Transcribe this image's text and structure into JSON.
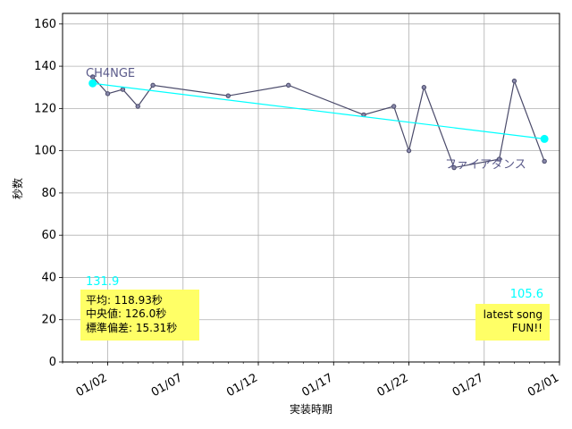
{
  "chart_data": {
    "type": "line",
    "xlabel": "実装時期",
    "ylabel": "秒数",
    "ylim": [
      0,
      165
    ],
    "yticks": [
      0,
      20,
      40,
      60,
      80,
      100,
      120,
      140,
      160
    ],
    "xlim": [
      "2021-12-30",
      "2022-02-01"
    ],
    "xticks": [
      {
        "date": "2022-01-02",
        "label": "01/02"
      },
      {
        "date": "2022-01-07",
        "label": "01/07"
      },
      {
        "date": "2022-01-12",
        "label": "01/12"
      },
      {
        "date": "2022-01-17",
        "label": "01/17"
      },
      {
        "date": "2022-01-22",
        "label": "01/22"
      },
      {
        "date": "2022-01-27",
        "label": "01/27"
      },
      {
        "date": "2022-02-01",
        "label": "02/01"
      }
    ],
    "grid": true,
    "series": [
      {
        "color": "#4a4a6a",
        "points": [
          {
            "x": "2022-01-01",
            "y": 135
          },
          {
            "x": "2022-01-02",
            "y": 127
          },
          {
            "x": "2022-01-03",
            "y": 129
          },
          {
            "x": "2022-01-04",
            "y": 121
          },
          {
            "x": "2022-01-05",
            "y": 131
          },
          {
            "x": "2022-01-10",
            "y": 126
          },
          {
            "x": "2022-01-14",
            "y": 131
          },
          {
            "x": "2022-01-19",
            "y": 117
          },
          {
            "x": "2022-01-21",
            "y": 121
          },
          {
            "x": "2022-01-22",
            "y": 100
          },
          {
            "x": "2022-01-23",
            "y": 130
          },
          {
            "x": "2022-01-25",
            "y": 92
          },
          {
            "x": "2022-01-28",
            "y": 96
          },
          {
            "x": "2022-01-29",
            "y": 133
          },
          {
            "x": "2022-01-31",
            "y": 95
          }
        ]
      }
    ],
    "trendline": {
      "color": "#00ffff",
      "start": {
        "x": "2022-01-01",
        "y": 131.9
      },
      "end": {
        "x": "2022-01-31",
        "y": 105.6
      }
    },
    "annotations": {
      "trend_start_value": "131.9",
      "trend_end_value": "105.6",
      "first_song": "CH4NGE",
      "last_song": "ファイアダンス"
    },
    "stats_box": {
      "lines": [
        "平均: 118.93秒",
        "中央値: 126.0秒",
        "標準偏差:  15.31秒"
      ],
      "bg": "#ffff66"
    },
    "latest_box": {
      "lines": [
        "latest song",
        "FUN!!"
      ],
      "bg": "#ffff66"
    }
  }
}
